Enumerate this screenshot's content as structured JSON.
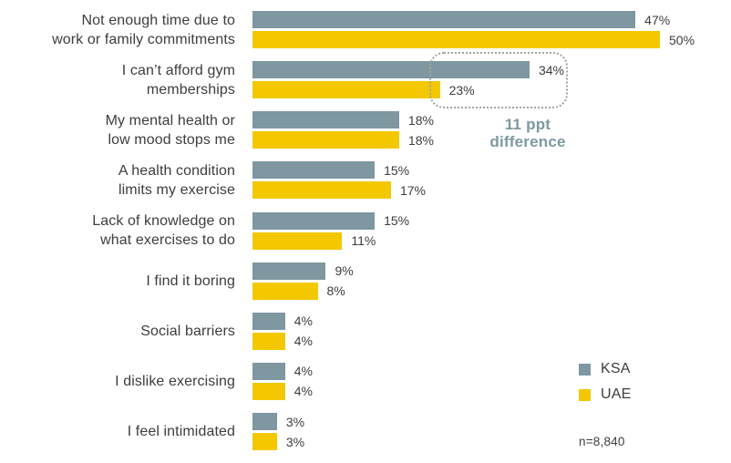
{
  "chart_data": {
    "type": "bar",
    "orientation": "horizontal",
    "title": "",
    "categories": [
      "Not enough time due to work or family commitments",
      "I can’t afford gym memberships",
      "My mental health or low mood stops me",
      "A health condition limits my exercise",
      "Lack of knowledge on what exercises to do",
      "I find it boring",
      "Social barriers",
      "I dislike exercising",
      "I feel intimidated"
    ],
    "category_lines": [
      [
        "Not enough time due to",
        "work or family commitments"
      ],
      [
        "I can’t afford gym",
        "memberships"
      ],
      [
        "My mental health or",
        "low mood stops me"
      ],
      [
        "A health condition",
        "limits my exercise"
      ],
      [
        "Lack of knowledge on",
        "what exercises to do"
      ],
      [
        "I find it boring"
      ],
      [
        "Social barriers"
      ],
      [
        "I dislike exercising"
      ],
      [
        "I feel intimidated"
      ]
    ],
    "series": [
      {
        "name": "KSA",
        "color": "#7e97a0",
        "values": [
          47,
          34,
          18,
          15,
          15,
          9,
          4,
          4,
          3
        ]
      },
      {
        "name": "UAE",
        "color": "#f4c800",
        "values": [
          50,
          23,
          18,
          17,
          11,
          8,
          4,
          4,
          3
        ]
      }
    ],
    "value_suffix": "%",
    "xlim": [
      0,
      50
    ],
    "grid": false,
    "legend_position": "bottom-right",
    "annotation_text": "11 ppt difference",
    "annotation_target": "I can’t afford gym memberships",
    "note": "n=8,840"
  },
  "annotation": {
    "line1": "11 ppt",
    "line2": "difference"
  },
  "legend": {
    "items": [
      {
        "label": "KSA",
        "color": "#7e97a0"
      },
      {
        "label": "UAE",
        "color": "#f4c800"
      }
    ]
  },
  "note": {
    "text": "n=8,840"
  },
  "colors": {
    "ksa_bar": "#7e97a0",
    "uae_bar": "#f4c800",
    "text": "#3d3d3d",
    "annotation_text": "#7d99a1",
    "callout_border": "#a3a3a3",
    "background": "#ffffff"
  }
}
